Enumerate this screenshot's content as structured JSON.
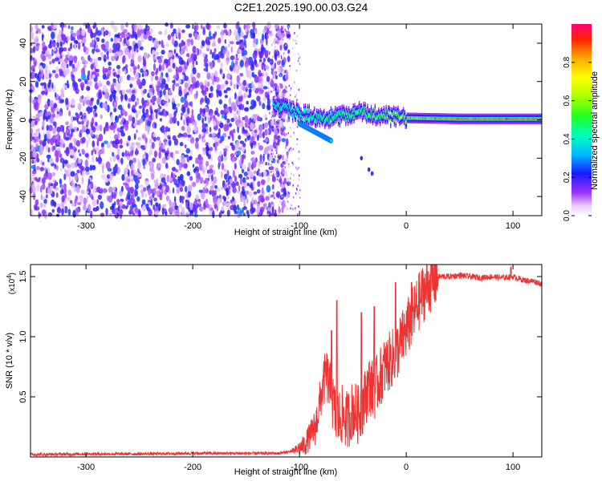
{
  "page": {
    "title": "C2E1.2025.190.00.03.G24"
  },
  "chart_data": [
    {
      "type": "heatmap",
      "xlabel": "Height of straight line (km)",
      "ylabel": "Frequency (Hz)",
      "xlim": [
        -352,
        127
      ],
      "ylim": [
        -50,
        50
      ],
      "x_ticks": [
        -300,
        -200,
        -100,
        0,
        100
      ],
      "x_tick_labels": [
        "-300",
        "-200",
        "-100",
        "0",
        "100"
      ],
      "y_ticks": [
        -40,
        -20,
        0,
        20,
        40
      ],
      "y_tick_labels": [
        "-40",
        "-20",
        "0",
        "20",
        "40"
      ],
      "colorbar": {
        "label": "Normalized spectral amplitude",
        "range": [
          0.0,
          1.0
        ],
        "ticks": [
          0.0,
          0.2,
          0.4,
          0.6,
          0.8
        ],
        "tick_labels": [
          "0.0",
          "0.2",
          "0.4",
          "0.6",
          "0.8"
        ],
        "colormap": "rainbow"
      },
      "features": {
        "noise_region_x": [
          -352,
          -110
        ],
        "noise_amplitude_range": [
          0.05,
          0.25
        ],
        "carrier_track": [
          {
            "x": -125,
            "y": 8,
            "v": 0.4
          },
          {
            "x": -105,
            "y": 4,
            "v": 0.4
          },
          {
            "x": -90,
            "y": 2,
            "v": 0.5
          },
          {
            "x": -70,
            "y": 1,
            "v": 0.55
          },
          {
            "x": -45,
            "y": 4,
            "v": 0.6
          },
          {
            "x": -20,
            "y": 2,
            "v": 0.7
          },
          {
            "x": 0,
            "y": 1,
            "v": 0.8
          },
          {
            "x": 50,
            "y": 0.5,
            "v": 0.85
          },
          {
            "x": 127,
            "y": 0.5,
            "v": 0.85
          }
        ],
        "side_branch": [
          {
            "x": -100,
            "y": -2
          },
          {
            "x": -80,
            "y": -8
          },
          {
            "x": -70,
            "y": -11
          }
        ],
        "faint_dots": [
          {
            "x": -42,
            "y": -20
          },
          {
            "x": -35,
            "y": -26
          },
          {
            "x": -32,
            "y": -28
          }
        ]
      }
    },
    {
      "type": "line",
      "xlabel": "Height of straight line (km)",
      "ylabel": "SNR (10 * v/v)",
      "multiplier_label": "(x10",
      "multiplier_exponent": "4",
      "multiplier_suffix": ")",
      "xlim": [
        -352,
        127
      ],
      "ylim": [
        0,
        1.6
      ],
      "x_ticks": [
        -300,
        -200,
        -100,
        0,
        100
      ],
      "x_tick_labels": [
        "-300",
        "-200",
        "-100",
        "0",
        "100"
      ],
      "y_ticks": [
        0.5,
        1.0,
        1.5
      ],
      "y_tick_labels": [
        "0.5",
        "1.0",
        "1.5"
      ],
      "line_color": "#ee3333",
      "series": [
        {
          "x": [
            -352,
            -300,
            -250,
            -200,
            -150,
            -120,
            -105,
            -95,
            -85,
            -80,
            -75,
            -70,
            -65,
            -60,
            -55,
            -50,
            -45,
            -40,
            -35,
            -30,
            -25,
            -20,
            -15,
            -10,
            -5,
            0,
            5,
            10,
            15,
            20,
            25,
            30,
            35,
            40,
            50,
            60,
            70,
            80,
            90,
            100,
            110,
            120,
            127
          ],
          "y": [
            0.02,
            0.025,
            0.025,
            0.03,
            0.03,
            0.03,
            0.05,
            0.1,
            0.25,
            0.5,
            0.7,
            0.5,
            0.3,
            0.35,
            0.3,
            0.4,
            0.35,
            0.45,
            0.6,
            0.55,
            0.65,
            0.75,
            0.8,
            0.85,
            0.95,
            1.05,
            1.15,
            1.25,
            1.35,
            1.42,
            1.47,
            1.5,
            1.5,
            1.5,
            1.51,
            1.5,
            1.49,
            1.5,
            1.49,
            1.5,
            1.47,
            1.46,
            1.44
          ]
        }
      ],
      "spikes": [
        {
          "x": -70,
          "y": 1.05
        },
        {
          "x": -65,
          "y": 1.3
        },
        {
          "x": -42,
          "y": 1.2
        },
        {
          "x": -30,
          "y": 1.25
        },
        {
          "x": -10,
          "y": 1.45
        },
        {
          "x": 5,
          "y": 1.45
        },
        {
          "x": 98,
          "y": 1.58
        }
      ]
    }
  ]
}
